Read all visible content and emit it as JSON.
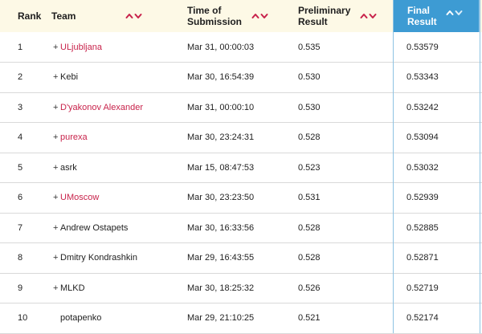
{
  "columns": {
    "rank": "Rank",
    "team": "Team",
    "time_line1": "Time of",
    "time_line2": "Submission",
    "prelim_line1": "Preliminary",
    "prelim_line2": "Result",
    "final_line1": "Final",
    "final_line2": "Result"
  },
  "sort_icons": [
    "sort-up-icon",
    "sort-down-icon"
  ],
  "colors": {
    "header_bg": "#fdf9e6",
    "active_header_bg": "#3d9bd3",
    "team_link": "#c8234b",
    "sort_arrow": "#c8234b"
  },
  "rows": [
    {
      "rank": "1",
      "plus": "+",
      "team": "ULjubljana",
      "link": true,
      "time": "Mar 31, 00:00:03",
      "prelim": "0.535",
      "final": "0.53579"
    },
    {
      "rank": "2",
      "plus": "+",
      "team": "Kebi",
      "link": false,
      "time": "Mar 30, 16:54:39",
      "prelim": "0.530",
      "final": "0.53343"
    },
    {
      "rank": "3",
      "plus": "+",
      "team": "D'yakonov Alexander",
      "link": true,
      "time": "Mar 31, 00:00:10",
      "prelim": "0.530",
      "final": "0.53242"
    },
    {
      "rank": "4",
      "plus": "+",
      "team": "purexa",
      "link": true,
      "time": "Mar 30, 23:24:31",
      "prelim": "0.528",
      "final": "0.53094"
    },
    {
      "rank": "5",
      "plus": "+",
      "team": "asrk",
      "link": false,
      "time": "Mar 15, 08:47:53",
      "prelim": "0.523",
      "final": "0.53032"
    },
    {
      "rank": "6",
      "plus": "+",
      "team": "UMoscow",
      "link": true,
      "time": "Mar 30, 23:23:50",
      "prelim": "0.531",
      "final": "0.52939"
    },
    {
      "rank": "7",
      "plus": "+",
      "team": "Andrew Ostapets",
      "link": false,
      "time": "Mar 30, 16:33:56",
      "prelim": "0.528",
      "final": "0.52885"
    },
    {
      "rank": "8",
      "plus": "+",
      "team": "Dmitry Kondrashkin",
      "link": false,
      "time": "Mar 29, 16:43:55",
      "prelim": "0.528",
      "final": "0.52871"
    },
    {
      "rank": "9",
      "plus": "+",
      "team": "MLKD",
      "link": false,
      "time": "Mar 30, 18:25:32",
      "prelim": "0.526",
      "final": "0.52719"
    },
    {
      "rank": "10",
      "plus": "",
      "team": "potapenko",
      "link": false,
      "time": "Mar 29, 21:10:25",
      "prelim": "0.521",
      "final": "0.52174"
    }
  ]
}
